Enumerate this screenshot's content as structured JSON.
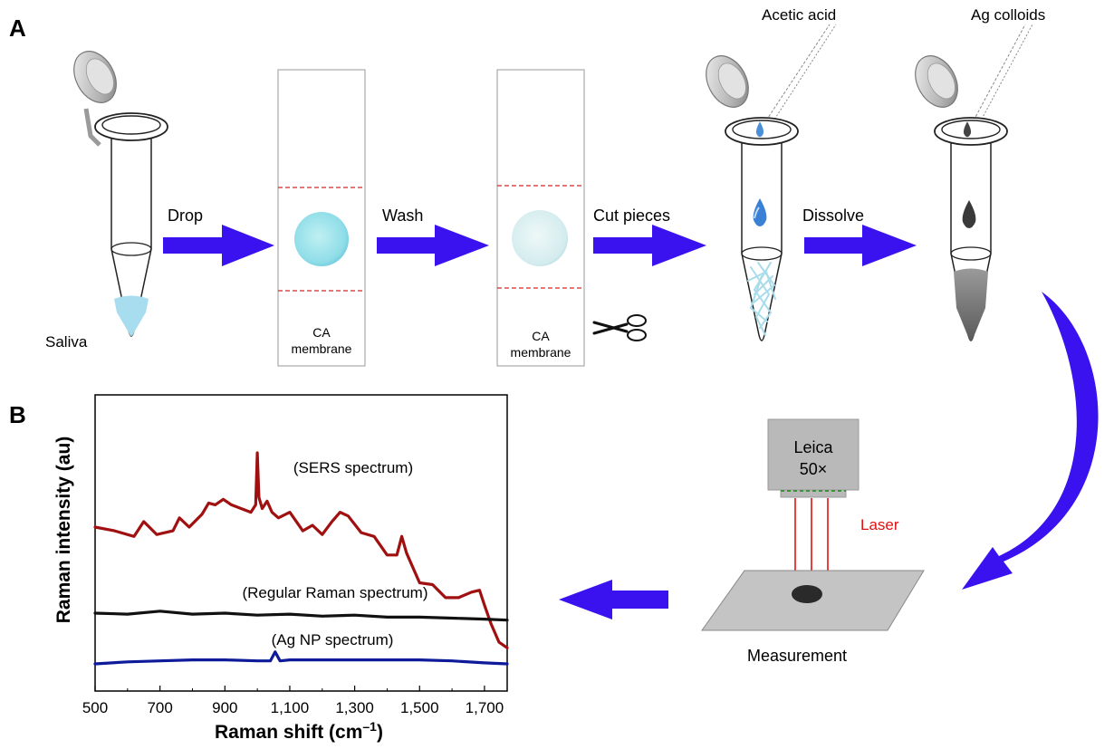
{
  "panels": {
    "a_label": "A",
    "b_label": "B"
  },
  "workflow": {
    "saliva_label": "Saliva",
    "step_labels": [
      "Drop",
      "Wash",
      "Cut pieces",
      "Dissolve"
    ],
    "membrane_label_line1": "CA",
    "membrane_label_line2": "membrane",
    "acetic_acid_label": "Acetic acid",
    "ag_colloids_label": "Ag colloids",
    "objective_line1": "Leica",
    "objective_line2": "50×",
    "laser_label": "Laser",
    "measurement_label": "Measurement"
  },
  "colors": {
    "arrow": "#3a12f0",
    "sers": "#a01010",
    "regular": "#111111",
    "agnp": "#0d1a9a",
    "laser": "#e01010",
    "saliva": "#a8ddf0",
    "dashed_line": "#e02020"
  },
  "icons": [
    "scissors-icon",
    "tube-icon",
    "pipette-icon",
    "objective-icon",
    "laser-arrow-icon"
  ],
  "chart_data": {
    "type": "line",
    "xlabel_main": "Raman shift (cm",
    "xlabel_sup": "–1",
    "xlabel_tail": ")",
    "ylabel": "Raman intensity (au)",
    "xlim": [
      500,
      1770
    ],
    "x_ticks": [
      500,
      700,
      900,
      1100,
      1300,
      1500,
      1700
    ],
    "x_tick_labels": [
      "500",
      "700",
      "900",
      "1,100",
      "1,300",
      "1,500",
      "1,700"
    ],
    "grid": false,
    "series": [
      {
        "name": "(SERS spectrum)",
        "color": "#a01010",
        "x": [
          500,
          560,
          620,
          650,
          690,
          740,
          760,
          790,
          830,
          850,
          870,
          895,
          920,
          950,
          980,
          995,
          1000,
          1005,
          1015,
          1030,
          1045,
          1065,
          1100,
          1140,
          1170,
          1200,
          1230,
          1255,
          1280,
          1320,
          1360,
          1400,
          1430,
          1445,
          1460,
          1500,
          1540,
          1580,
          1620,
          1660,
          1685,
          1700,
          1720,
          1745,
          1770
        ],
        "y": [
          0.6,
          0.58,
          0.55,
          0.63,
          0.56,
          0.58,
          0.65,
          0.6,
          0.67,
          0.73,
          0.72,
          0.75,
          0.72,
          0.7,
          0.68,
          0.72,
          1.0,
          0.76,
          0.7,
          0.74,
          0.68,
          0.65,
          0.68,
          0.58,
          0.61,
          0.56,
          0.63,
          0.68,
          0.66,
          0.57,
          0.55,
          0.45,
          0.45,
          0.55,
          0.46,
          0.3,
          0.29,
          0.22,
          0.22,
          0.25,
          0.26,
          0.18,
          0.08,
          -0.02,
          -0.05
        ]
      },
      {
        "name": "(Regular Raman spectrum)",
        "color": "#111111",
        "x": [
          500,
          600,
          700,
          800,
          900,
          1000,
          1100,
          1200,
          1300,
          1400,
          1500,
          1600,
          1700,
          1770
        ],
        "y": [
          0.0,
          -0.005,
          0.01,
          -0.005,
          0.0,
          -0.01,
          -0.005,
          -0.015,
          -0.01,
          -0.02,
          -0.02,
          -0.025,
          -0.03,
          -0.035
        ]
      },
      {
        "name": "(Ag NP spectrum)",
        "color": "#0d1a9a",
        "x": [
          500,
          600,
          700,
          800,
          900,
          1000,
          1040,
          1055,
          1070,
          1100,
          1200,
          1300,
          1400,
          1500,
          1600,
          1700,
          1770
        ],
        "y": [
          0.0,
          0.01,
          0.015,
          0.02,
          0.02,
          0.015,
          0.015,
          0.06,
          0.015,
          0.02,
          0.02,
          0.02,
          0.02,
          0.02,
          0.015,
          0.005,
          0.0
        ]
      }
    ]
  }
}
